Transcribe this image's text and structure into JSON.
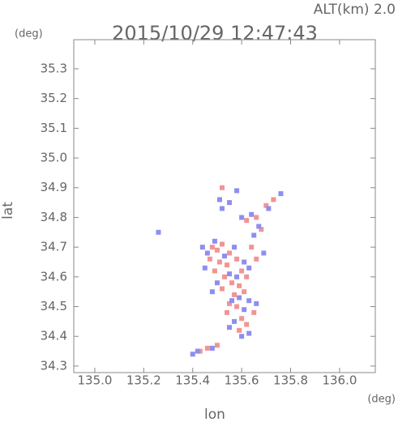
{
  "chart_data": {
    "type": "scatter",
    "title": "2015/10/29 12:47:43",
    "altitude": "ALT(km) 2.0",
    "ylabel": "lat",
    "ylabel_unit": "(deg)",
    "xlabel": "lon",
    "xlabel_unit": "(deg)",
    "xlim": [
      134.914,
      136.146
    ],
    "ylim": [
      34.278,
      35.398
    ],
    "xticks": [
      {
        "value": 135,
        "label": "135.0"
      },
      135.2,
      135.4,
      135.6,
      135.8,
      {
        "value": 136,
        "label": "136.0"
      }
    ],
    "yticks": [
      34.3,
      34.4,
      34.5,
      34.6,
      34.7,
      34.8,
      34.9,
      {
        "value": 35,
        "label": "35.0"
      },
      35.1,
      35.2,
      35.3
    ],
    "grid": false,
    "marker": "square",
    "series": [
      {
        "color": "#f29494",
        "x": [
          135.48,
          135.5,
          135.52,
          135.55,
          135.47,
          135.51,
          135.54,
          135.58,
          135.6,
          135.49,
          135.53,
          135.56,
          135.62,
          135.59,
          135.52,
          135.57,
          135.55,
          135.58,
          135.54,
          135.6,
          135.62,
          135.59,
          135.65,
          135.46,
          135.5,
          135.43,
          135.62,
          135.66,
          135.7,
          135.52,
          135.68,
          135.73,
          135.64,
          135.66,
          135.61
        ],
        "values": [
          34.7,
          34.69,
          34.71,
          34.68,
          34.66,
          34.65,
          34.64,
          34.66,
          34.62,
          34.62,
          34.6,
          34.58,
          34.6,
          34.57,
          34.56,
          34.54,
          34.51,
          34.5,
          34.48,
          34.46,
          34.44,
          34.42,
          34.48,
          34.36,
          34.37,
          34.35,
          34.79,
          34.8,
          34.84,
          34.9,
          34.76,
          34.86,
          34.7,
          34.66,
          34.55
        ]
      },
      {
        "color": "#8e8ef0",
        "x": [
          135.44,
          135.46,
          135.49,
          135.53,
          135.57,
          135.45,
          135.5,
          135.55,
          135.61,
          135.63,
          135.58,
          135.48,
          135.56,
          135.59,
          135.63,
          135.61,
          135.66,
          135.57,
          135.63,
          135.6,
          135.55,
          135.4,
          135.42,
          135.48,
          135.51,
          135.55,
          135.6,
          135.64,
          135.58,
          135.67,
          135.76,
          135.71,
          135.65,
          135.52,
          135.26,
          135.69
        ],
        "values": [
          34.7,
          34.68,
          34.72,
          34.67,
          34.7,
          34.63,
          34.58,
          34.61,
          34.65,
          34.63,
          34.6,
          34.55,
          34.52,
          34.53,
          34.52,
          34.49,
          34.51,
          34.45,
          34.41,
          34.4,
          34.43,
          34.34,
          34.35,
          34.36,
          34.86,
          34.85,
          34.8,
          34.81,
          34.89,
          34.77,
          34.88,
          34.83,
          34.74,
          34.83,
          34.75,
          34.68
        ]
      }
    ]
  }
}
